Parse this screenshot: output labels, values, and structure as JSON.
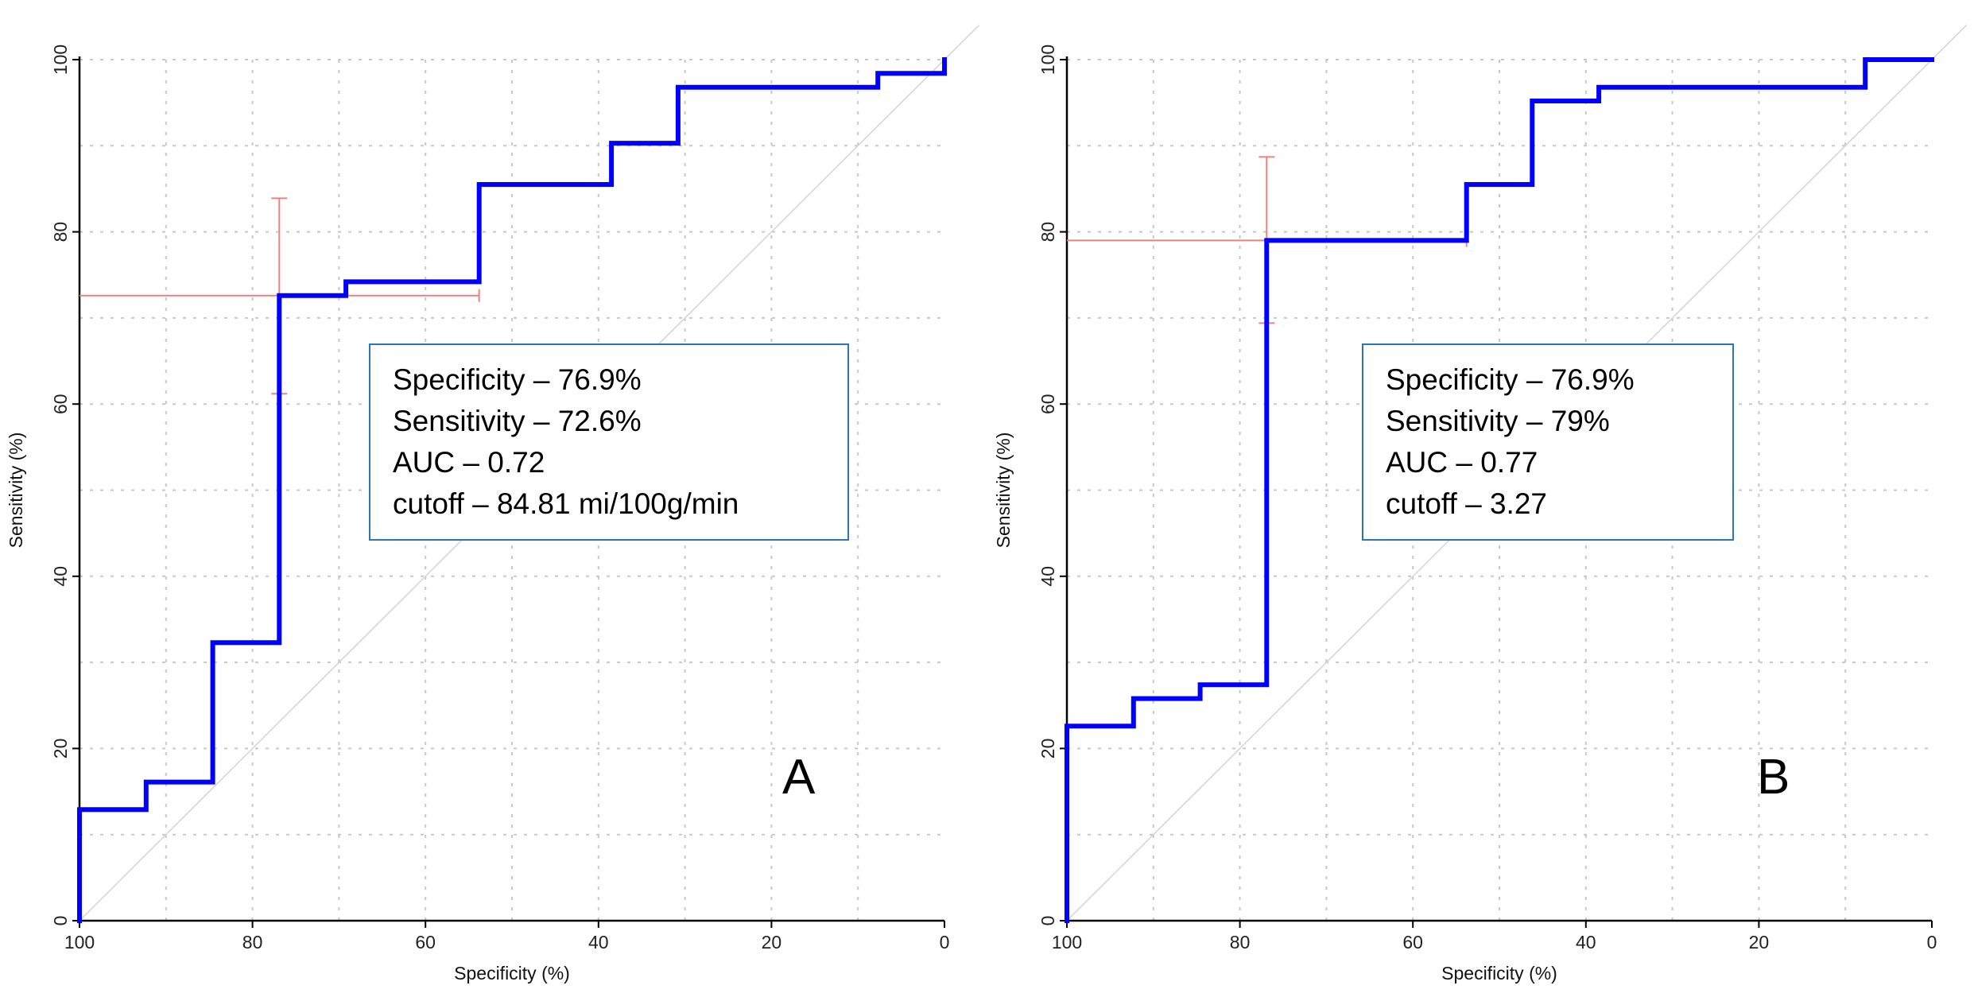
{
  "chart_data": [
    {
      "type": "line",
      "panel_label": "A",
      "xlabel": "Specificity (%)",
      "ylabel": "Sensitivity (%)",
      "xlim": [
        100,
        0
      ],
      "ylim": [
        0,
        100
      ],
      "x_ticks": [
        100,
        80,
        60,
        40,
        20,
        0
      ],
      "y_ticks": [
        0,
        20,
        40,
        60,
        80,
        100
      ],
      "grid": true,
      "reference_line": true,
      "series": [
        {
          "color": "#0000ff",
          "x": [
            100,
            100,
            92.3,
            92.3,
            84.6,
            84.6,
            76.9,
            76.9,
            69.2,
            69.2,
            53.8,
            53.8,
            38.5,
            38.5,
            30.8,
            30.8,
            7.7,
            7.7,
            0,
            0
          ],
          "y": [
            0,
            12.9,
            12.9,
            16.1,
            16.1,
            32.3,
            32.3,
            72.6,
            72.6,
            74.2,
            74.2,
            85.5,
            85.5,
            90.3,
            90.3,
            96.8,
            96.8,
            98.4,
            98.4,
            100
          ]
        }
      ],
      "optimal_point": {
        "specificity": 76.9,
        "sensitivity": 72.6,
        "sensitivity_ci": [
          61.2,
          83.9
        ],
        "specificity_ci": [
          100,
          53.8
        ],
        "color": "#f08080"
      },
      "annotation_lines": [
        "Specificity – 76.9%",
        "Sensitivity – 72.6%",
        "AUC – 0.72",
        "cutoff – 84.81 mi/100g/min"
      ]
    },
    {
      "type": "line",
      "panel_label": "B",
      "xlabel": "Specificity (%)",
      "ylabel": "Sensitivity (%)",
      "xlim": [
        100,
        0
      ],
      "ylim": [
        0,
        100
      ],
      "x_ticks": [
        100,
        80,
        60,
        40,
        20,
        0
      ],
      "y_ticks": [
        0,
        20,
        40,
        60,
        80,
        100
      ],
      "grid": true,
      "reference_line": true,
      "series": [
        {
          "color": "#0000ff",
          "x": [
            100,
            100,
            92.3,
            92.3,
            84.6,
            84.6,
            76.9,
            76.9,
            53.8,
            53.8,
            46.2,
            46.2,
            38.5,
            38.5,
            7.7,
            7.7,
            0
          ],
          "y": [
            0,
            22.6,
            22.6,
            25.8,
            25.8,
            27.4,
            27.4,
            79.0,
            79.0,
            85.5,
            85.5,
            95.2,
            95.2,
            96.8,
            96.8,
            100,
            100
          ]
        }
      ],
      "optimal_point": {
        "specificity": 76.9,
        "sensitivity": 79.0,
        "sensitivity_ci": [
          69.4,
          88.7
        ],
        "specificity_ci": [
          100,
          53.8
        ],
        "color": "#f08080"
      },
      "annotation_lines": [
        "Specificity – 76.9%",
        "Sensitivity – 79%",
        "AUC – 0.77",
        "cutoff – 3.27"
      ]
    }
  ]
}
